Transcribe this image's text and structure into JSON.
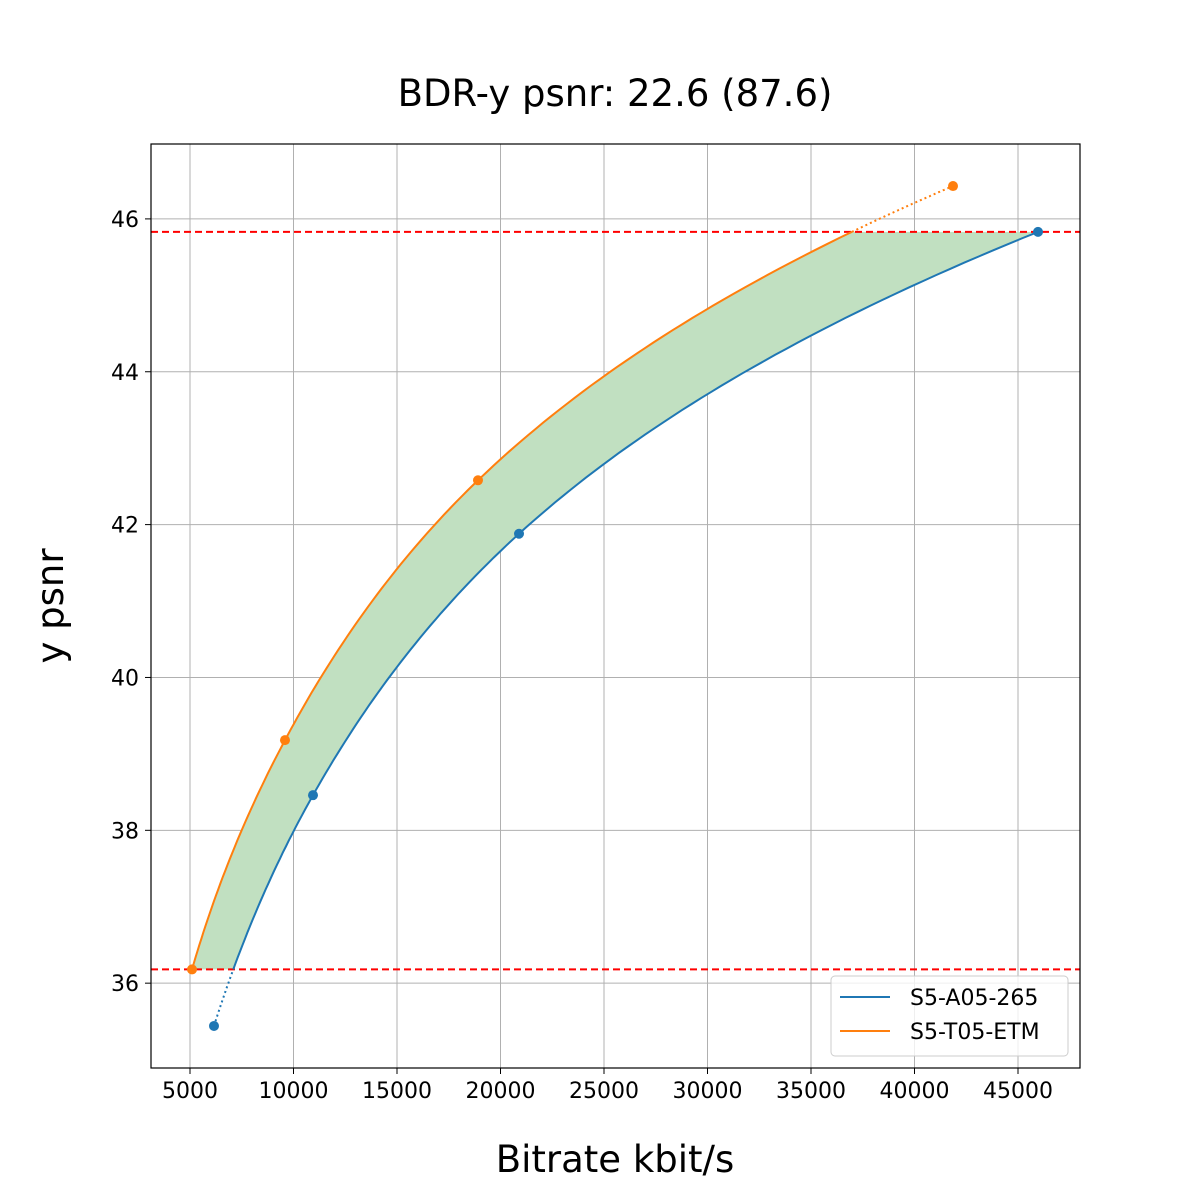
{
  "chart_data": {
    "type": "line",
    "title": "BDR-y psnr: 22.6 (87.6)",
    "xlabel": "Bitrate kbit/s",
    "ylabel": "y psnr",
    "xlim": [
      3116,
      47995
    ],
    "ylim": [
      34.89,
      46.98
    ],
    "xticks": [
      5000,
      10000,
      15000,
      20000,
      25000,
      30000,
      35000,
      40000,
      45000
    ],
    "yticks": [
      36,
      38,
      40,
      42,
      44,
      46
    ],
    "grid": true,
    "legend_position": "bottom-right",
    "series": [
      {
        "name": "S5-A05-265",
        "color": "#1f77b4",
        "x": [
          6159,
          10942,
          20894,
          45966
        ],
        "y": [
          35.44,
          38.46,
          41.88,
          45.83
        ]
      },
      {
        "name": "S5-T05-ETM",
        "color": "#ff7f0e",
        "x": [
          5097,
          9589,
          18913,
          41860
        ],
        "y": [
          36.18,
          39.18,
          42.58,
          46.43
        ]
      }
    ],
    "reference_lines": {
      "y": [
        45.83,
        36.18
      ],
      "color": "#ff0000",
      "style": "dashed"
    },
    "fill_between": {
      "y_range": [
        36.18,
        45.83
      ],
      "color": "#c1e0c1"
    }
  }
}
